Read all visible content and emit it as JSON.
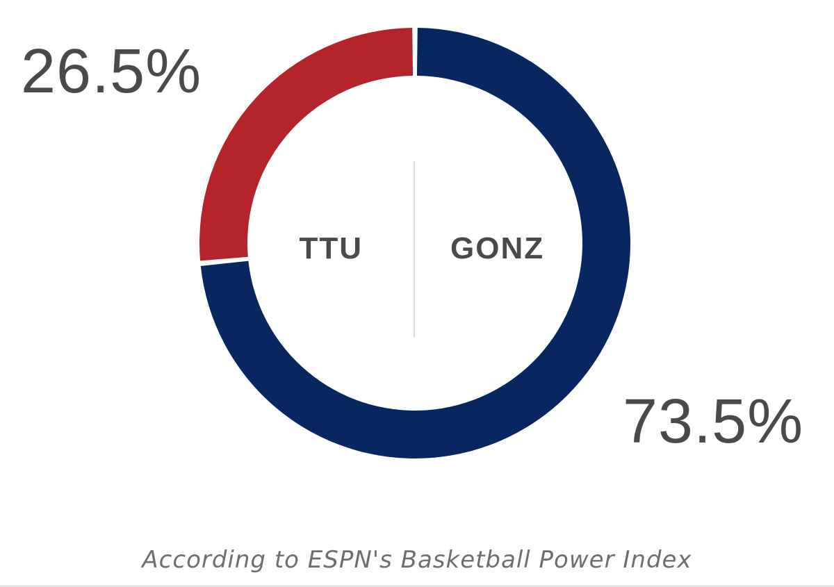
{
  "chart_data": {
    "type": "pie",
    "categories": [
      "TTU",
      "GONZ"
    ],
    "values": [
      26.5,
      73.5
    ],
    "value_labels": [
      "26.5%",
      "73.5%"
    ],
    "colors": [
      "#b5232b",
      "#082761"
    ],
    "caption": "According to ESPN's Basketball Power Index"
  },
  "matchup": {
    "away_team": "TTU",
    "home_team": "GONZ",
    "away_pct": "26.5%",
    "home_pct": "73.5%"
  }
}
